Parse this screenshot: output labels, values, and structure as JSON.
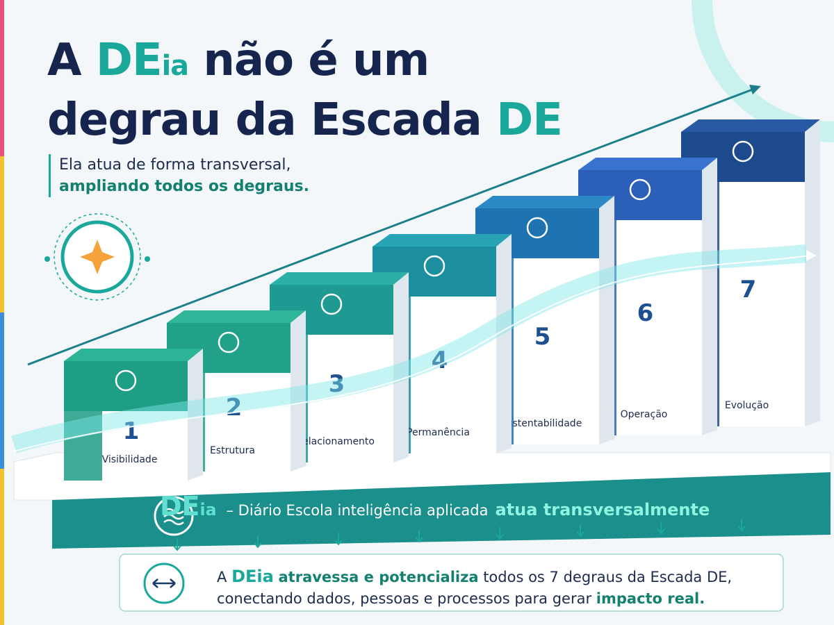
{
  "title": {
    "line1": [
      "A",
      "DE",
      "ia",
      "não é um"
    ],
    "line2": [
      "degrau da Escada",
      "DE"
    ]
  },
  "subtitle": {
    "line1": "Ela atua de forma transversal,",
    "line2": "ampliando todos os degraus."
  },
  "steps": [
    {
      "number": 1,
      "label": "Visibilidade"
    },
    {
      "number": 2,
      "label": "Estrutura"
    },
    {
      "number": 3,
      "label": "Relacionamento"
    },
    {
      "number": 4,
      "label": "Permanência"
    },
    {
      "number": 5,
      "label": "Sustentabilidade"
    },
    {
      "number": 6,
      "label": "Operação"
    },
    {
      "number": 7,
      "label": "Evolução"
    }
  ],
  "banner": {
    "brand": [
      "DE",
      "ia"
    ],
    "text": "– Diário Escola inteligência aplicada",
    "highlight": "atua transversalmente"
  },
  "footer": {
    "line1": [
      "A",
      "DE",
      "ia",
      "atravessa e potencializa",
      "todos os 7 degraus da Escada DE,"
    ],
    "line2": [
      "conectando dados, pessoas e processos para gerar",
      "impacto real."
    ]
  }
}
